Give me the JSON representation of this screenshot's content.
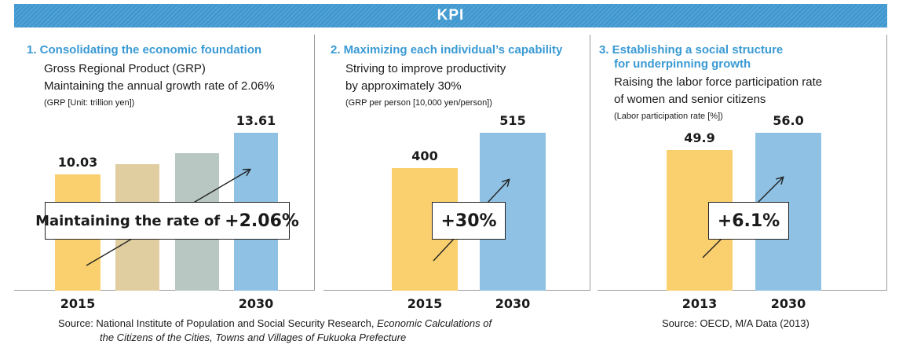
{
  "banner": {
    "title": "KPI"
  },
  "panels": [
    {
      "heading_lines": [
        "1. Consolidating the economic foundation"
      ],
      "desc_lines": [
        "Gross Regional Product (GRP)",
        "Maintaining the annual growth rate of 2.06%"
      ],
      "unit": "(GRP [Unit: trillion yen])",
      "callout": {
        "label": "Maintaining the rate of ",
        "value": "+2.06%"
      }
    },
    {
      "heading_lines": [
        "2. Maximizing each individual’s capability"
      ],
      "desc_lines": [
        "Striving to improve productivity",
        "by approximately 30%"
      ],
      "unit": "(GRP per person [10,000 yen/person])",
      "callout": {
        "label": "",
        "value": "+30%"
      }
    },
    {
      "heading_lines": [
        "3. Establishing a social structure",
        "for underpinning growth"
      ],
      "desc_lines": [
        "Raising the labor force participation rate",
        "of women and senior citizens"
      ],
      "unit": "(Labor participation rate [%])",
      "callout": {
        "label": "",
        "value": "+6.1%"
      }
    }
  ],
  "sources": {
    "left_prefix": "Source: National Institute of Population and Social Security Research, ",
    "left_italic_1": "Economic Calculations of",
    "left_italic_2": "the Citizens of the Cities, Towns and Villages of Fukuoka Prefecture",
    "right": "Source: OECD, M/A Data (2013)"
  },
  "chart_data": [
    {
      "type": "bar",
      "categories": [
        "2015",
        "",
        "",
        "2030"
      ],
      "values": [
        10.03,
        10.9,
        11.87,
        13.61
      ],
      "data_labels": [
        "10.03",
        "",
        "",
        "13.61"
      ],
      "colors": [
        "#fad06e",
        "#e0cda0",
        "#b9c7c2",
        "#8ec1e3"
      ],
      "ylabel": "(GRP [Unit: trillion yen])",
      "ylim": [
        0,
        14.5
      ],
      "grid": false
    },
    {
      "type": "bar",
      "categories": [
        "2015",
        "2030"
      ],
      "values": [
        400,
        515
      ],
      "data_labels": [
        "400",
        "515"
      ],
      "colors": [
        "#fad06e",
        "#8ec1e3"
      ],
      "ylabel": "(GRP per person [10,000 yen/person])",
      "ylim": [
        0,
        550
      ],
      "grid": false
    },
    {
      "type": "bar",
      "categories": [
        "2013",
        "2030"
      ],
      "values": [
        49.9,
        56.0
      ],
      "data_labels": [
        "49.9",
        "56.0"
      ],
      "colors": [
        "#fad06e",
        "#8ec1e3"
      ],
      "ylabel": "(Labor participation rate [%])",
      "ylim": [
        0,
        60
      ],
      "grid": false
    }
  ]
}
